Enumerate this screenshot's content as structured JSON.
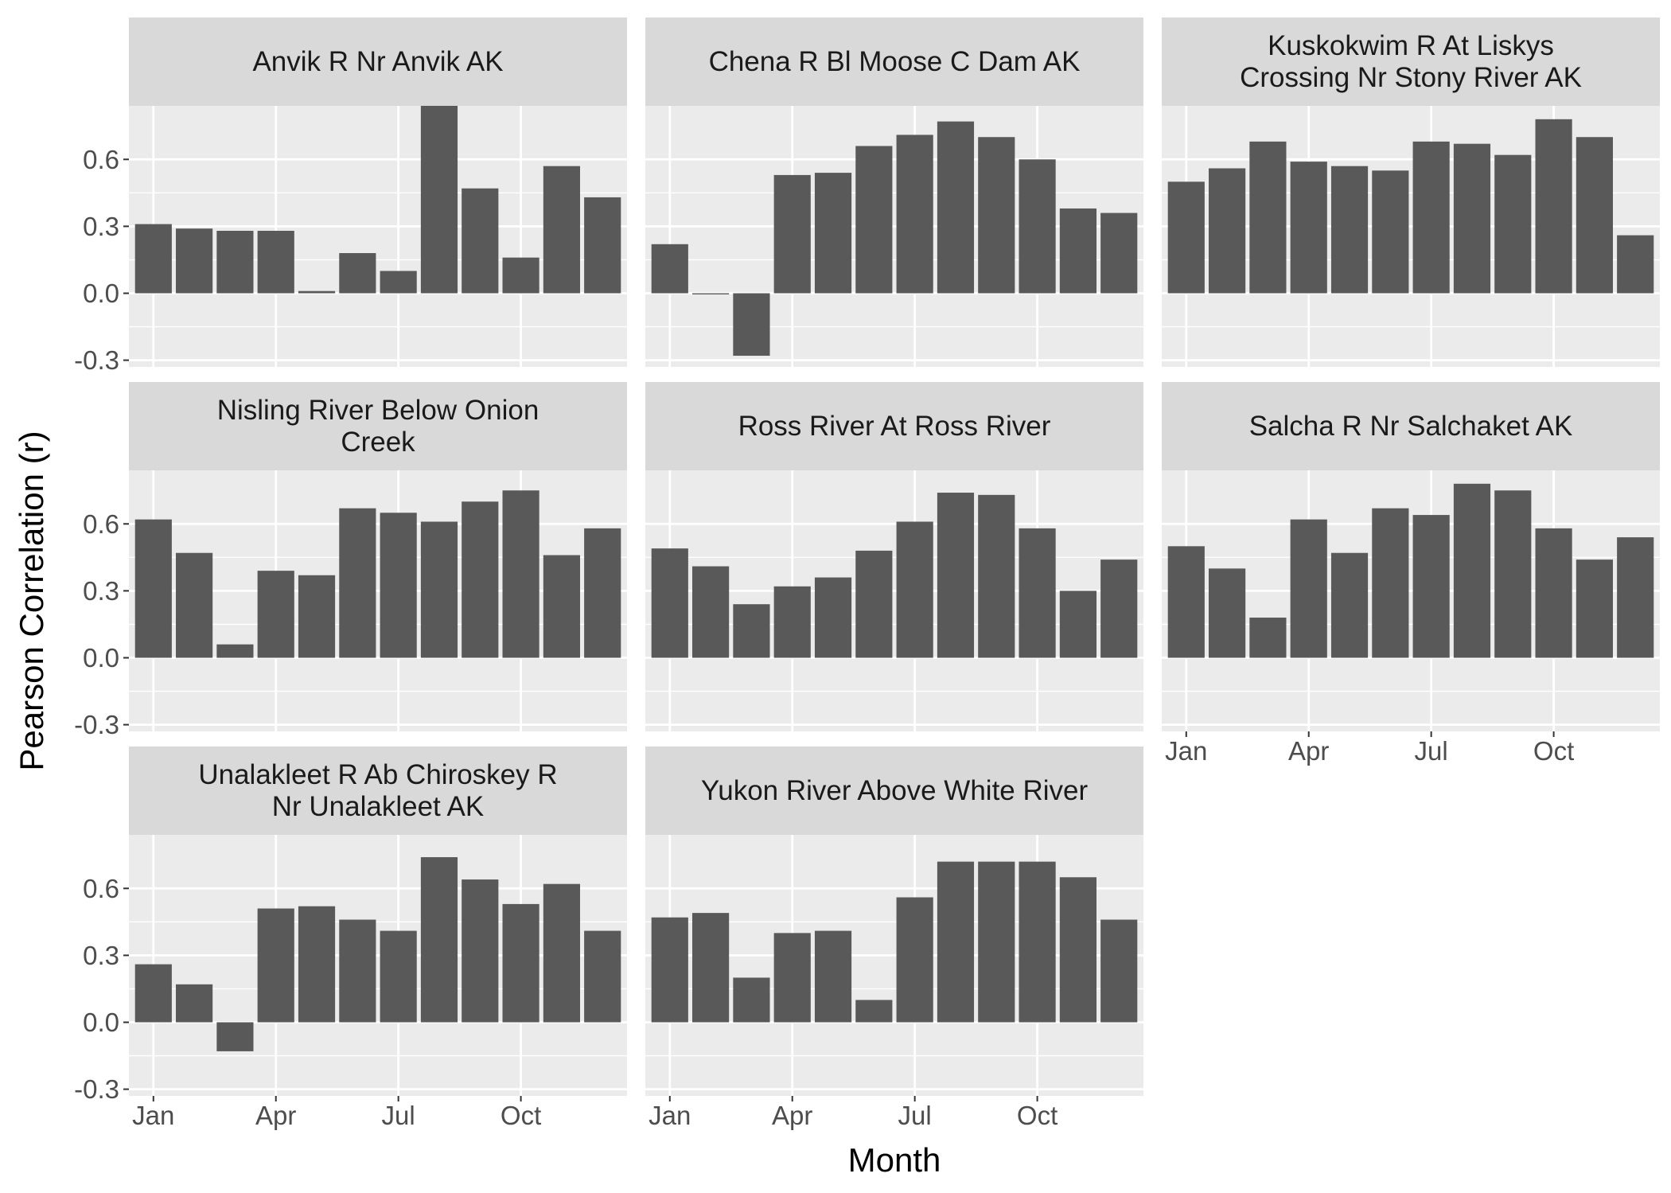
{
  "chart_data": {
    "type": "bar",
    "layout": "facet-wrap-3-columns",
    "xlabel": "Month",
    "ylabel": "Pearson Correlation (r)",
    "ylim": [
      -0.33,
      0.84
    ],
    "y_ticks": [
      -0.3,
      0.0,
      0.3,
      0.6
    ],
    "y_tick_labels": [
      "-0.3",
      "0.0",
      "0.3",
      "0.6"
    ],
    "x_ticks": [
      1,
      4,
      7,
      10
    ],
    "x_tick_labels": [
      "Jan",
      "Apr",
      "Jul",
      "Oct"
    ],
    "months": [
      1,
      2,
      3,
      4,
      5,
      6,
      7,
      8,
      9,
      10,
      11,
      12
    ],
    "bar_color": "#595959",
    "panel_background": "#ebebeb",
    "strip_background": "#d9d9d9",
    "grid": true,
    "panels": [
      {
        "title": [
          "Anvik R Nr Anvik AK"
        ],
        "values": [
          0.31,
          0.29,
          0.28,
          0.28,
          0.01,
          0.18,
          0.1,
          0.84,
          0.47,
          0.16,
          0.57,
          0.43
        ]
      },
      {
        "title": [
          "Chena R Bl Moose C Dam AK"
        ],
        "values": [
          0.22,
          -0.005,
          -0.28,
          0.53,
          0.54,
          0.66,
          0.71,
          0.77,
          0.7,
          0.6,
          0.38,
          0.36
        ]
      },
      {
        "title": [
          "Kuskokwim R At Liskys",
          "Crossing Nr Stony River AK"
        ],
        "values": [
          0.5,
          0.56,
          0.68,
          0.59,
          0.57,
          0.55,
          0.68,
          0.67,
          0.62,
          0.78,
          0.7,
          0.26
        ]
      },
      {
        "title": [
          "Nisling River Below Onion",
          "Creek"
        ],
        "values": [
          0.62,
          0.47,
          0.06,
          0.39,
          0.37,
          0.67,
          0.65,
          0.61,
          0.7,
          0.75,
          0.46,
          0.58
        ]
      },
      {
        "title": [
          "Ross River At Ross River"
        ],
        "values": [
          0.49,
          0.41,
          0.24,
          0.32,
          0.36,
          0.48,
          0.61,
          0.74,
          0.73,
          0.58,
          0.3,
          0.44
        ]
      },
      {
        "title": [
          "Salcha R Nr Salchaket AK"
        ],
        "values": [
          0.5,
          0.4,
          0.18,
          0.62,
          0.47,
          0.67,
          0.64,
          0.78,
          0.75,
          0.58,
          0.44,
          0.54
        ]
      },
      {
        "title": [
          "Unalakleet R Ab Chiroskey R",
          "Nr Unalakleet AK"
        ],
        "values": [
          0.26,
          0.17,
          -0.13,
          0.51,
          0.52,
          0.46,
          0.41,
          0.74,
          0.64,
          0.53,
          0.62,
          0.41
        ]
      },
      {
        "title": [
          "Yukon River Above White River"
        ],
        "values": [
          0.47,
          0.49,
          0.2,
          0.4,
          0.41,
          0.1,
          0.56,
          0.72,
          0.72,
          0.72,
          0.65,
          0.46
        ]
      }
    ]
  }
}
